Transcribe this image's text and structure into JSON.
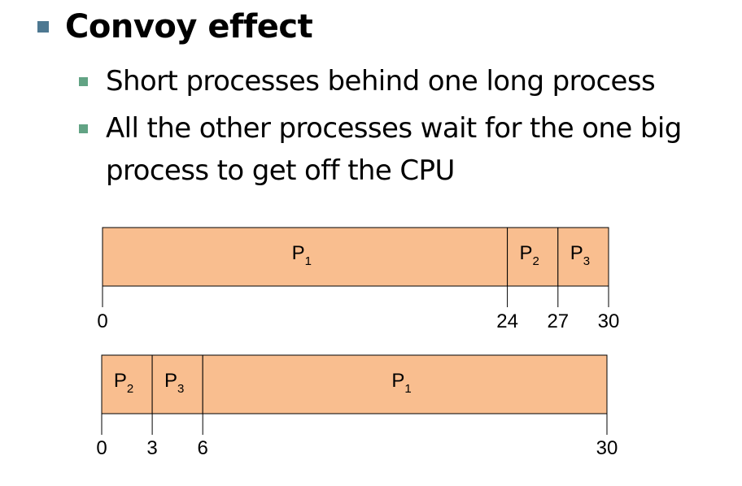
{
  "slide": {
    "title": "Convoy effect",
    "bullets": [
      "Short processes behind one long process",
      "All the other processes wait for the one big",
      "process to get off the CPU"
    ]
  },
  "colors": {
    "bar_fill": "#f9be8f",
    "title_bullet": "#4d7891",
    "sub_bullet": "#62a384"
  },
  "gantt": [
    {
      "segments": [
        {
          "label": "P",
          "sub": "1",
          "start": 0,
          "end": 24
        },
        {
          "label": "P",
          "sub": "2",
          "start": 24,
          "end": 27
        },
        {
          "label": "P",
          "sub": "3",
          "start": 27,
          "end": 30
        }
      ],
      "ticks": [
        "0",
        "24",
        "27",
        "30"
      ]
    },
    {
      "segments": [
        {
          "label": "P",
          "sub": "2",
          "start": 0,
          "end": 3
        },
        {
          "label": "P",
          "sub": "3",
          "start": 3,
          "end": 6
        },
        {
          "label": "P",
          "sub": "1",
          "start": 6,
          "end": 30
        }
      ],
      "ticks": [
        "0",
        "3",
        "6",
        "30"
      ]
    }
  ]
}
